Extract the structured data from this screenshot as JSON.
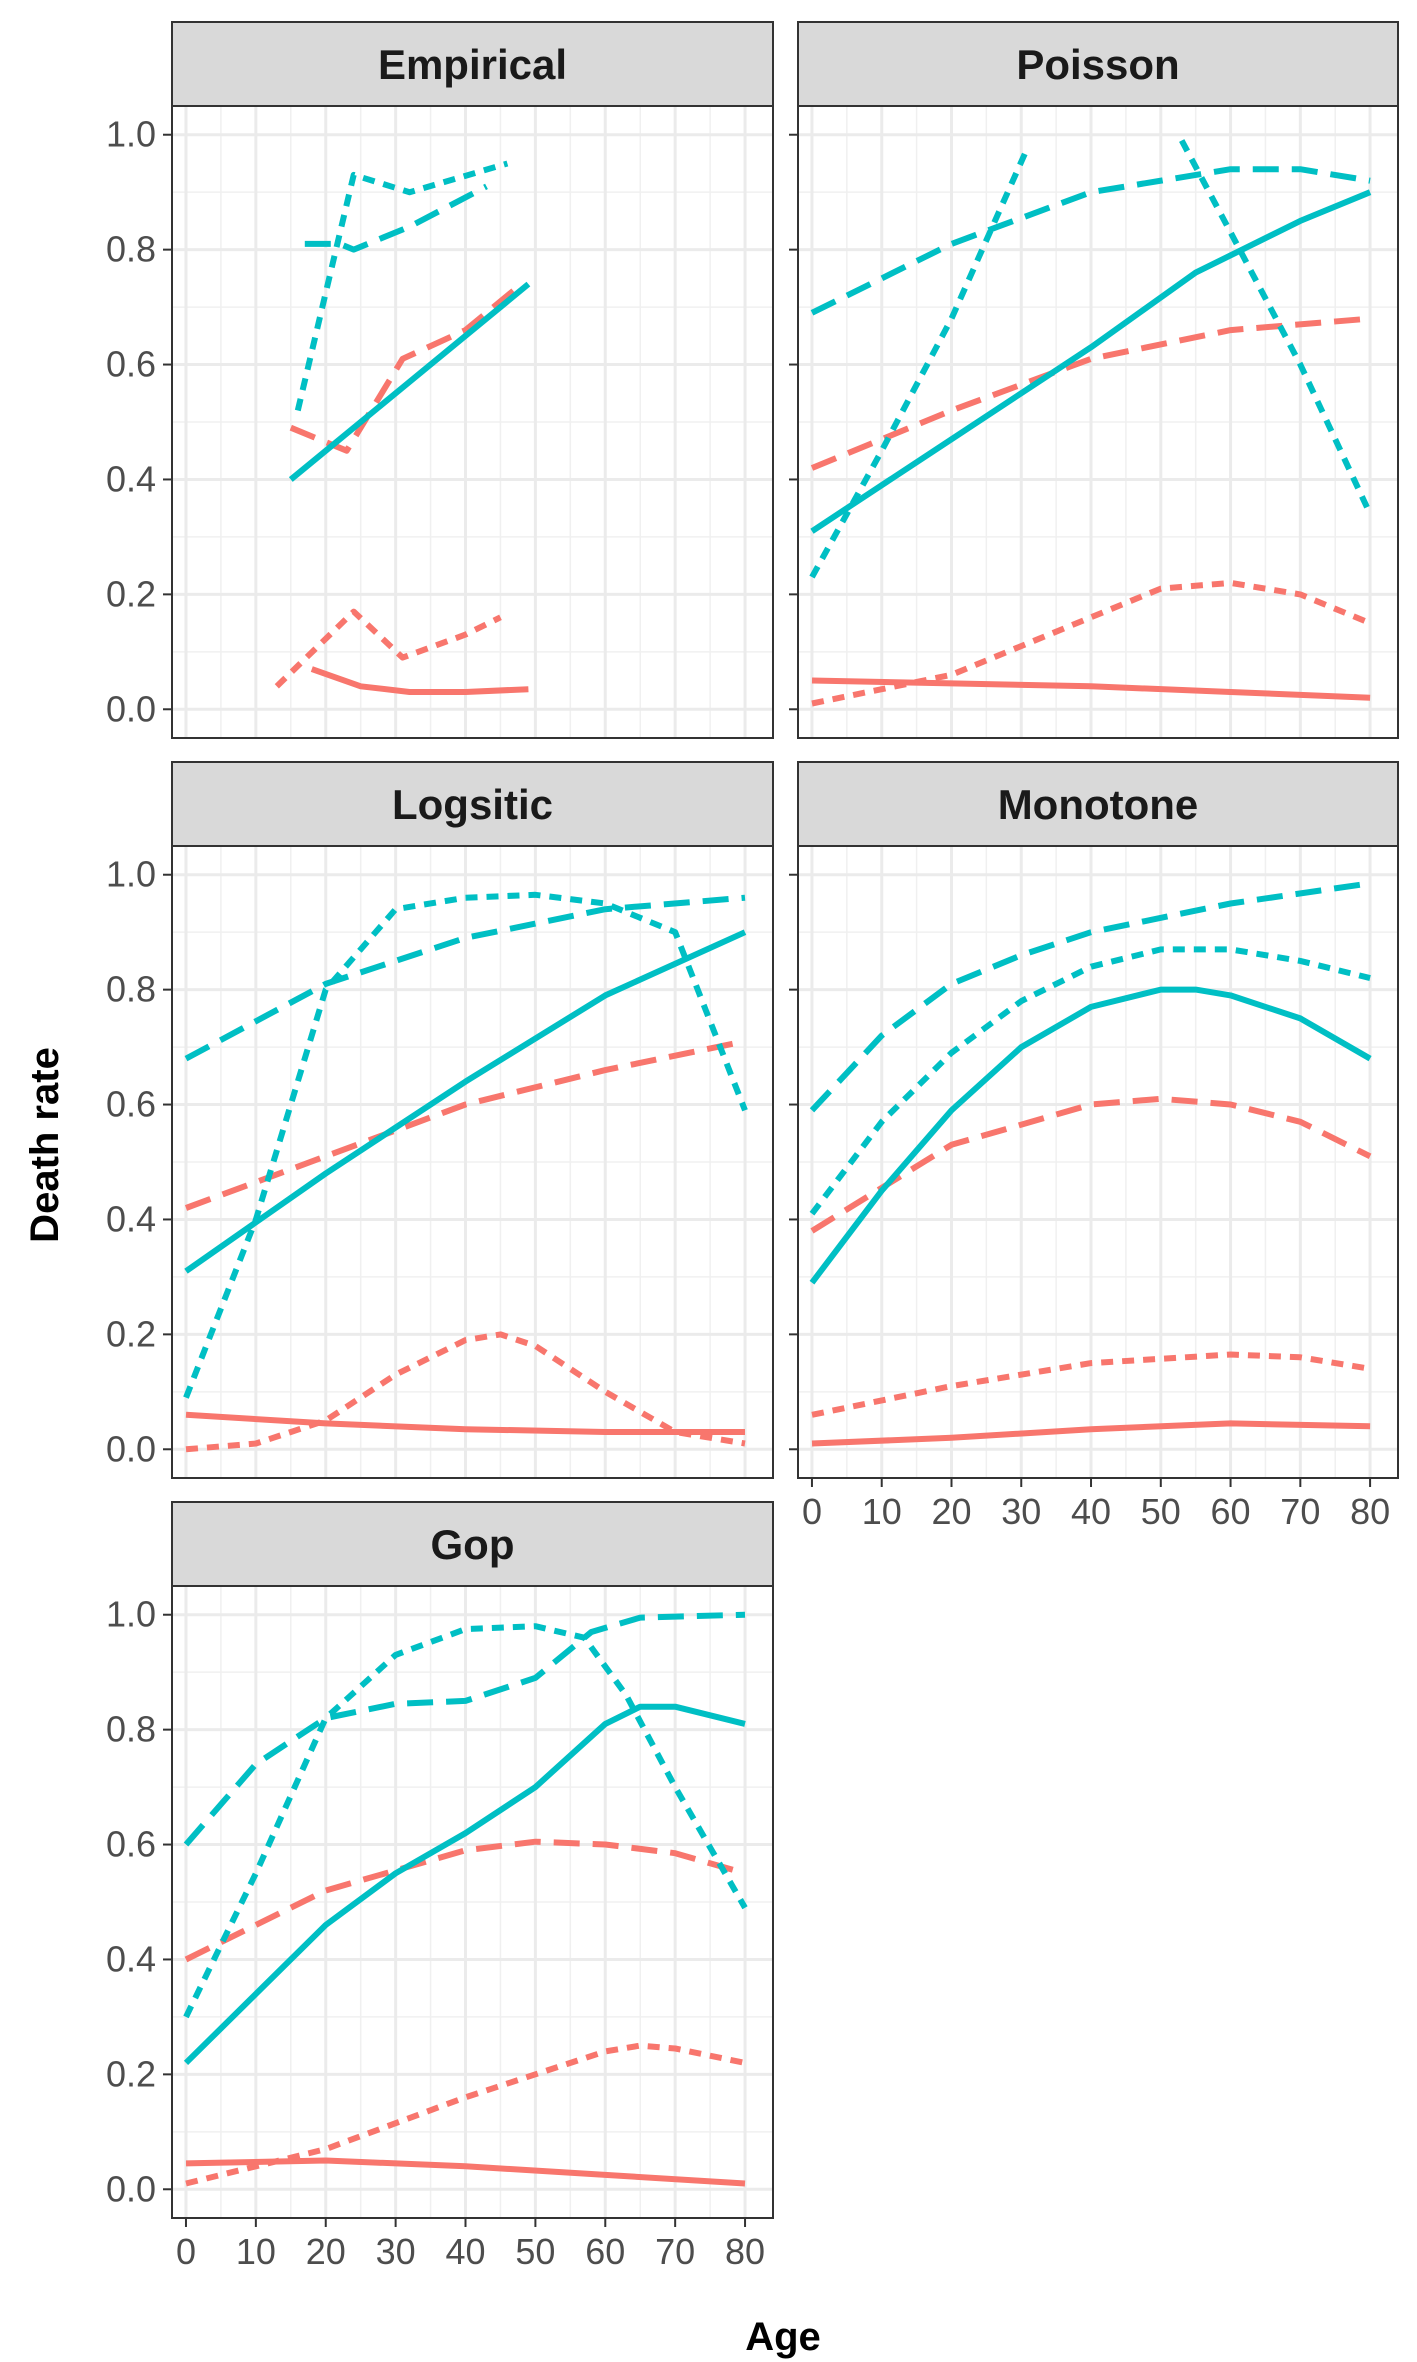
{
  "ylabel": "Death rate",
  "xlabel": "Age",
  "colors": {
    "group_a": "#F8766D",
    "group_b": "#00BFC4"
  },
  "chart_data": [
    {
      "type": "line",
      "title": "Empirical",
      "xlim": [
        -2,
        84
      ],
      "ylim": [
        -0.05,
        1.05
      ],
      "xticks": [
        0,
        10,
        20,
        30,
        40,
        50,
        60,
        70,
        80
      ],
      "yticks": [
        0.0,
        0.2,
        0.4,
        0.6,
        0.8,
        1.0
      ],
      "grid": true,
      "series": [
        {
          "color": "#F8766D",
          "dash": "solid",
          "points": [
            [
              18,
              0.07
            ],
            [
              25,
              0.04
            ],
            [
              32,
              0.03
            ],
            [
              40,
              0.03
            ],
            [
              49,
              0.035
            ]
          ]
        },
        {
          "color": "#F8766D",
          "dash": "long",
          "points": [
            [
              15,
              0.49
            ],
            [
              23,
              0.45
            ],
            [
              31,
              0.61
            ],
            [
              40,
              0.66
            ],
            [
              48,
              0.74
            ]
          ]
        },
        {
          "color": "#F8766D",
          "dash": "short",
          "points": [
            [
              13,
              0.04
            ],
            [
              24,
              0.17
            ],
            [
              31,
              0.09
            ],
            [
              40,
              0.13
            ],
            [
              45,
              0.16
            ]
          ]
        },
        {
          "color": "#00BFC4",
          "dash": "solid",
          "points": [
            [
              15,
              0.4
            ],
            [
              49,
              0.74
            ]
          ]
        },
        {
          "color": "#00BFC4",
          "dash": "long",
          "points": [
            [
              17,
              0.81
            ],
            [
              22,
              0.81
            ],
            [
              24,
              0.8
            ],
            [
              32,
              0.84
            ],
            [
              43,
              0.91
            ]
          ]
        },
        {
          "color": "#00BFC4",
          "dash": "short",
          "points": [
            [
              16,
              0.52
            ],
            [
              24,
              0.93
            ],
            [
              32,
              0.9
            ],
            [
              46,
              0.95
            ]
          ]
        }
      ]
    },
    {
      "type": "line",
      "title": "Poisson",
      "xlim": [
        -2,
        84
      ],
      "ylim": [
        -0.05,
        1.05
      ],
      "xticks": [
        0,
        10,
        20,
        30,
        40,
        50,
        60,
        70,
        80
      ],
      "yticks": [
        0.0,
        0.2,
        0.4,
        0.6,
        0.8,
        1.0
      ],
      "grid": true,
      "series": [
        {
          "color": "#F8766D",
          "dash": "solid",
          "points": [
            [
              0,
              0.05
            ],
            [
              20,
              0.045
            ],
            [
              40,
              0.04
            ],
            [
              60,
              0.03
            ],
            [
              80,
              0.02
            ]
          ]
        },
        {
          "color": "#F8766D",
          "dash": "long",
          "points": [
            [
              0,
              0.42
            ],
            [
              20,
              0.52
            ],
            [
              40,
              0.61
            ],
            [
              60,
              0.66
            ],
            [
              80,
              0.68
            ]
          ]
        },
        {
          "color": "#F8766D",
          "dash": "short",
          "points": [
            [
              0,
              0.01
            ],
            [
              20,
              0.06
            ],
            [
              40,
              0.16
            ],
            [
              50,
              0.21
            ],
            [
              60,
              0.22
            ],
            [
              70,
              0.2
            ],
            [
              80,
              0.15
            ]
          ]
        },
        {
          "color": "#00BFC4",
          "dash": "solid",
          "points": [
            [
              0,
              0.31
            ],
            [
              20,
              0.47
            ],
            [
              40,
              0.63
            ],
            [
              55,
              0.76
            ],
            [
              70,
              0.85
            ],
            [
              80,
              0.9
            ]
          ]
        },
        {
          "color": "#00BFC4",
          "dash": "long",
          "points": [
            [
              0,
              0.69
            ],
            [
              20,
              0.81
            ],
            [
              40,
              0.9
            ],
            [
              60,
              0.94
            ],
            [
              70,
              0.94
            ],
            [
              80,
              0.92
            ]
          ]
        },
        {
          "color": "#00BFC4",
          "dash": "short",
          "points": [
            [
              0,
              0.23
            ],
            [
              10,
              0.45
            ],
            [
              20,
              0.68
            ],
            [
              31,
              0.98
            ]
          ]
        },
        {
          "color": "#00BFC4",
          "dash": "short",
          "points": [
            [
              53,
              0.99
            ],
            [
              60,
              0.83
            ],
            [
              70,
              0.6
            ],
            [
              80,
              0.34
            ]
          ]
        }
      ]
    },
    {
      "type": "line",
      "title": "Logsitic",
      "xlim": [
        -2,
        84
      ],
      "ylim": [
        -0.05,
        1.05
      ],
      "xticks": [
        0,
        10,
        20,
        30,
        40,
        50,
        60,
        70,
        80
      ],
      "yticks": [
        0.0,
        0.2,
        0.4,
        0.6,
        0.8,
        1.0
      ],
      "grid": true,
      "series": [
        {
          "color": "#F8766D",
          "dash": "solid",
          "points": [
            [
              0,
              0.06
            ],
            [
              20,
              0.045
            ],
            [
              40,
              0.035
            ],
            [
              60,
              0.03
            ],
            [
              80,
              0.03
            ]
          ]
        },
        {
          "color": "#F8766D",
          "dash": "long",
          "points": [
            [
              0,
              0.42
            ],
            [
              20,
              0.51
            ],
            [
              40,
              0.6
            ],
            [
              60,
              0.66
            ],
            [
              80,
              0.71
            ]
          ]
        },
        {
          "color": "#F8766D",
          "dash": "short",
          "points": [
            [
              0,
              0.0
            ],
            [
              10,
              0.01
            ],
            [
              20,
              0.05
            ],
            [
              30,
              0.13
            ],
            [
              40,
              0.19
            ],
            [
              45,
              0.2
            ],
            [
              50,
              0.18
            ],
            [
              60,
              0.1
            ],
            [
              70,
              0.03
            ],
            [
              80,
              0.01
            ]
          ]
        },
        {
          "color": "#00BFC4",
          "dash": "solid",
          "points": [
            [
              0,
              0.31
            ],
            [
              20,
              0.48
            ],
            [
              40,
              0.64
            ],
            [
              60,
              0.79
            ],
            [
              80,
              0.9
            ]
          ]
        },
        {
          "color": "#00BFC4",
          "dash": "long",
          "points": [
            [
              0,
              0.68
            ],
            [
              20,
              0.81
            ],
            [
              40,
              0.89
            ],
            [
              60,
              0.94
            ],
            [
              80,
              0.96
            ]
          ]
        },
        {
          "color": "#00BFC4",
          "dash": "short",
          "points": [
            [
              0,
              0.09
            ],
            [
              10,
              0.4
            ],
            [
              20,
              0.8
            ],
            [
              30,
              0.94
            ],
            [
              40,
              0.96
            ],
            [
              50,
              0.965
            ],
            [
              60,
              0.95
            ],
            [
              70,
              0.9
            ],
            [
              80,
              0.59
            ]
          ]
        }
      ]
    },
    {
      "type": "line",
      "title": "Monotone",
      "xlim": [
        -2,
        84
      ],
      "ylim": [
        -0.05,
        1.05
      ],
      "xticks": [
        0,
        10,
        20,
        30,
        40,
        50,
        60,
        70,
        80
      ],
      "yticks": [
        0.0,
        0.2,
        0.4,
        0.6,
        0.8,
        1.0
      ],
      "grid": true,
      "series": [
        {
          "color": "#F8766D",
          "dash": "solid",
          "points": [
            [
              0,
              0.01
            ],
            [
              20,
              0.02
            ],
            [
              40,
              0.035
            ],
            [
              60,
              0.045
            ],
            [
              80,
              0.04
            ]
          ]
        },
        {
          "color": "#F8766D",
          "dash": "long",
          "points": [
            [
              0,
              0.38
            ],
            [
              20,
              0.53
            ],
            [
              40,
              0.6
            ],
            [
              50,
              0.61
            ],
            [
              60,
              0.6
            ],
            [
              70,
              0.57
            ],
            [
              80,
              0.51
            ]
          ]
        },
        {
          "color": "#F8766D",
          "dash": "short",
          "points": [
            [
              0,
              0.06
            ],
            [
              20,
              0.11
            ],
            [
              40,
              0.15
            ],
            [
              60,
              0.165
            ],
            [
              70,
              0.16
            ],
            [
              80,
              0.14
            ]
          ]
        },
        {
          "color": "#00BFC4",
          "dash": "solid",
          "points": [
            [
              0,
              0.29
            ],
            [
              10,
              0.45
            ],
            [
              20,
              0.59
            ],
            [
              30,
              0.7
            ],
            [
              40,
              0.77
            ],
            [
              50,
              0.8
            ],
            [
              55,
              0.8
            ],
            [
              60,
              0.79
            ],
            [
              70,
              0.75
            ],
            [
              80,
              0.68
            ]
          ]
        },
        {
          "color": "#00BFC4",
          "dash": "long",
          "points": [
            [
              0,
              0.59
            ],
            [
              10,
              0.72
            ],
            [
              20,
              0.81
            ],
            [
              30,
              0.86
            ],
            [
              40,
              0.9
            ],
            [
              60,
              0.95
            ],
            [
              80,
              0.985
            ]
          ]
        },
        {
          "color": "#00BFC4",
          "dash": "short",
          "points": [
            [
              0,
              0.41
            ],
            [
              10,
              0.57
            ],
            [
              20,
              0.69
            ],
            [
              30,
              0.78
            ],
            [
              40,
              0.84
            ],
            [
              50,
              0.87
            ],
            [
              60,
              0.87
            ],
            [
              70,
              0.85
            ],
            [
              80,
              0.82
            ]
          ]
        }
      ]
    },
    {
      "type": "line",
      "title": "Gop",
      "xlim": [
        -2,
        84
      ],
      "ylim": [
        -0.05,
        1.05
      ],
      "xticks": [
        0,
        10,
        20,
        30,
        40,
        50,
        60,
        70,
        80
      ],
      "yticks": [
        0.0,
        0.2,
        0.4,
        0.6,
        0.8,
        1.0
      ],
      "grid": true,
      "series": [
        {
          "color": "#F8766D",
          "dash": "solid",
          "points": [
            [
              0,
              0.045
            ],
            [
              20,
              0.05
            ],
            [
              40,
              0.04
            ],
            [
              60,
              0.025
            ],
            [
              80,
              0.01
            ]
          ]
        },
        {
          "color": "#F8766D",
          "dash": "long",
          "points": [
            [
              0,
              0.4
            ],
            [
              20,
              0.52
            ],
            [
              40,
              0.59
            ],
            [
              50,
              0.605
            ],
            [
              60,
              0.6
            ],
            [
              70,
              0.585
            ],
            [
              80,
              0.55
            ]
          ]
        },
        {
          "color": "#F8766D",
          "dash": "short",
          "points": [
            [
              0,
              0.01
            ],
            [
              20,
              0.07
            ],
            [
              40,
              0.16
            ],
            [
              60,
              0.24
            ],
            [
              65,
              0.25
            ],
            [
              70,
              0.245
            ],
            [
              80,
              0.22
            ]
          ]
        },
        {
          "color": "#00BFC4",
          "dash": "solid",
          "points": [
            [
              0,
              0.22
            ],
            [
              10,
              0.34
            ],
            [
              20,
              0.46
            ],
            [
              30,
              0.55
            ],
            [
              40,
              0.62
            ],
            [
              50,
              0.7
            ],
            [
              60,
              0.81
            ],
            [
              65,
              0.84
            ],
            [
              70,
              0.84
            ],
            [
              80,
              0.81
            ]
          ]
        },
        {
          "color": "#00BFC4",
          "dash": "long",
          "points": [
            [
              0,
              0.6
            ],
            [
              10,
              0.74
            ],
            [
              20,
              0.82
            ],
            [
              30,
              0.845
            ],
            [
              40,
              0.85
            ],
            [
              50,
              0.89
            ],
            [
              58,
              0.97
            ],
            [
              65,
              0.995
            ],
            [
              80,
              1.0
            ]
          ]
        },
        {
          "color": "#00BFC4",
          "dash": "short",
          "points": [
            [
              0,
              0.3
            ],
            [
              10,
              0.55
            ],
            [
              20,
              0.82
            ],
            [
              30,
              0.93
            ],
            [
              40,
              0.975
            ],
            [
              50,
              0.98
            ],
            [
              57,
              0.96
            ],
            [
              63,
              0.86
            ],
            [
              70,
              0.7
            ],
            [
              80,
              0.49
            ]
          ]
        }
      ]
    }
  ]
}
